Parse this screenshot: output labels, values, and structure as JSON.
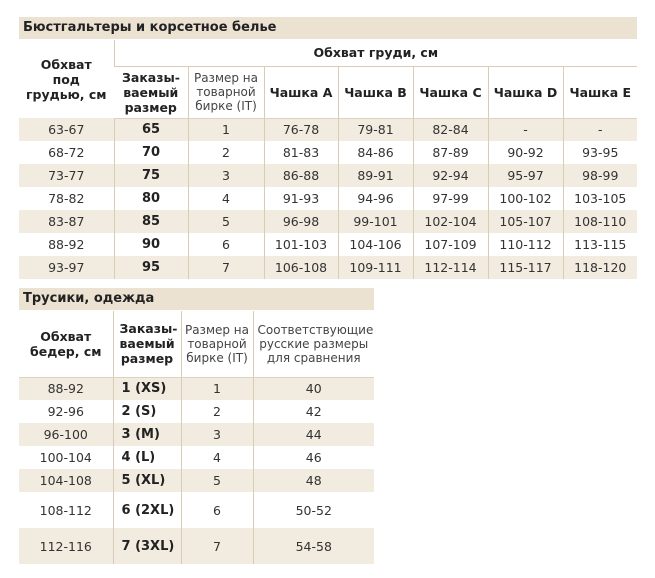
{
  "bra": {
    "title": "Бюстгальтеры и корсетное белье",
    "header": {
      "underbust": "Обхват под грудью, см",
      "bust_group": "Обхват груди, см",
      "order_size": "Заказы-ваемый размер",
      "tag_size": "Размер на товарной бирке (IT)",
      "cups": [
        "Чашка A",
        "Чашка B",
        "Чашка C",
        "Чашка D",
        "Чашка E"
      ]
    },
    "rows": [
      {
        "underbust": "63-67",
        "order": "65",
        "tag": "1",
        "cups": [
          "76-78",
          "79-81",
          "82-84",
          "-",
          "-"
        ]
      },
      {
        "underbust": "68-72",
        "order": "70",
        "tag": "2",
        "cups": [
          "81-83",
          "84-86",
          "87-89",
          "90-92",
          "93-95"
        ]
      },
      {
        "underbust": "73-77",
        "order": "75",
        "tag": "3",
        "cups": [
          "86-88",
          "89-91",
          "92-94",
          "95-97",
          "98-99"
        ]
      },
      {
        "underbust": "78-82",
        "order": "80",
        "tag": "4",
        "cups": [
          "91-93",
          "94-96",
          "97-99",
          "100-102",
          "103-105"
        ]
      },
      {
        "underbust": "83-87",
        "order": "85",
        "tag": "5",
        "cups": [
          "96-98",
          "99-101",
          "102-104",
          "105-107",
          "108-110"
        ]
      },
      {
        "underbust": "88-92",
        "order": "90",
        "tag": "6",
        "cups": [
          "101-103",
          "104-106",
          "107-109",
          "110-112",
          "113-115"
        ]
      },
      {
        "underbust": "93-97",
        "order": "95",
        "tag": "7",
        "cups": [
          "106-108",
          "109-111",
          "112-114",
          "115-117",
          "118-120"
        ]
      }
    ]
  },
  "panties": {
    "title": "Трусики, одежда",
    "header": {
      "hips": "Обхват бедер, см",
      "order_size": "Заказы-ваемый размер",
      "tag_size": "Размер на товарной бирке (IT)",
      "ru_size": "Соответствующие русские размеры для сравнения"
    },
    "rows": [
      {
        "hips": "88-92",
        "order": "1 (XS)",
        "tag": "1",
        "ru": "40"
      },
      {
        "hips": "92-96",
        "order": "2 (S)",
        "tag": "2",
        "ru": "42"
      },
      {
        "hips": "96-100",
        "order": "3 (M)",
        "tag": "3",
        "ru": "44"
      },
      {
        "hips": "100-104",
        "order": "4 (L)",
        "tag": "4",
        "ru": "46"
      },
      {
        "hips": "104-108",
        "order": "5 (XL)",
        "tag": "5",
        "ru": "48"
      },
      {
        "hips": "108-112",
        "order": "6 (2XL)",
        "tag": "6",
        "ru": "50-52"
      },
      {
        "hips": "112-116",
        "order": "7 (3XL)",
        "tag": "7",
        "ru": "54-58"
      }
    ]
  },
  "colors": {
    "title_bg": "#ece2d2",
    "row_shade": "#f2ebdf",
    "border": "#d9ccb6"
  }
}
